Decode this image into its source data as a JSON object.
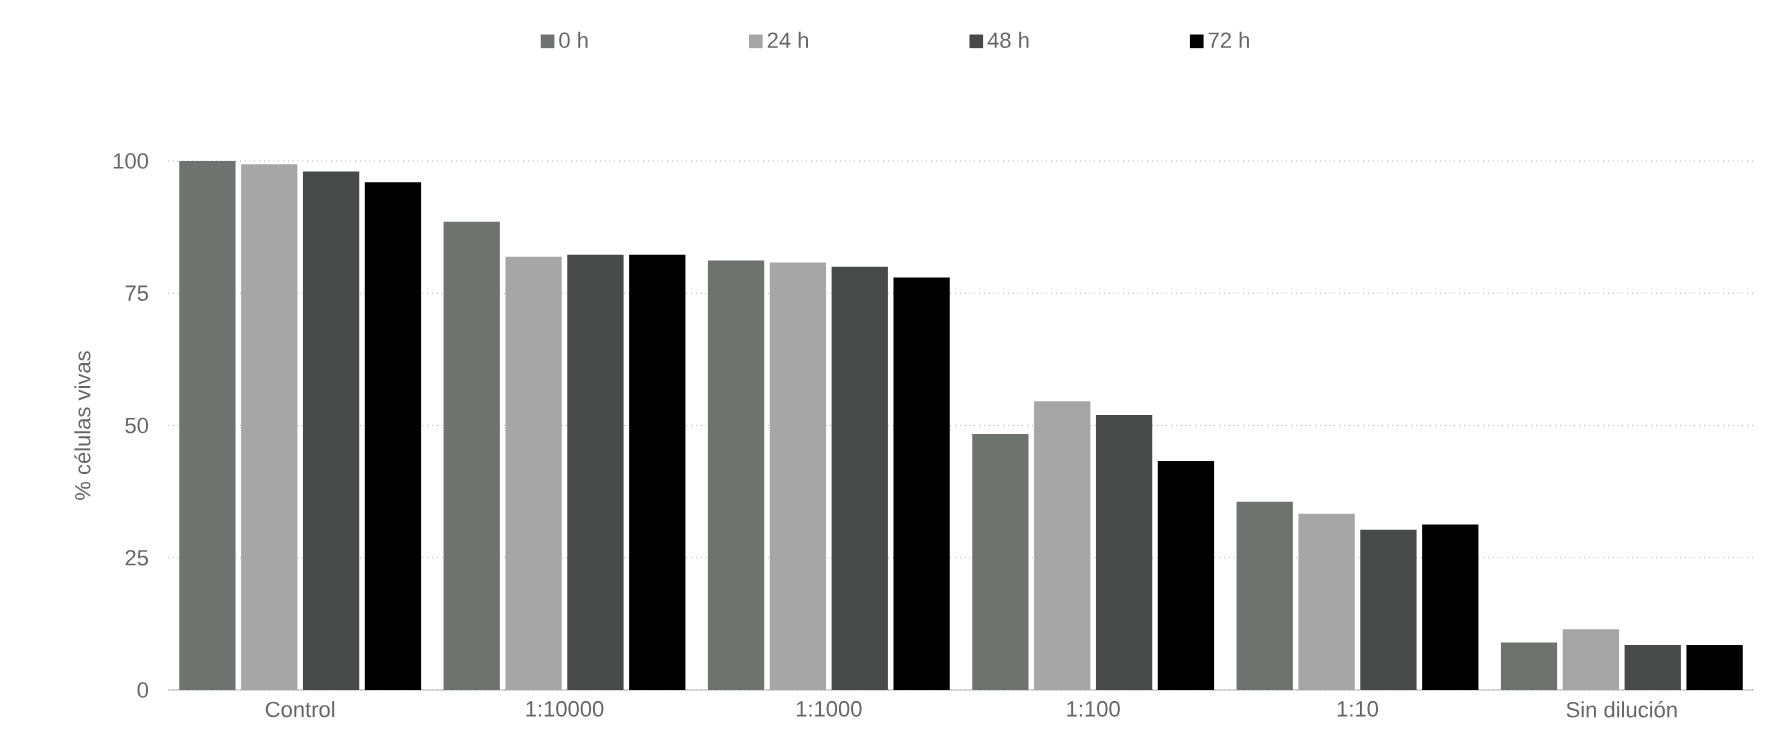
{
  "chart_data": {
    "type": "bar",
    "ylabel": "% células vivas",
    "categories": [
      "Control",
      "1:10000",
      "1:1000",
      "1:100",
      "1:10",
      "Sin dilución"
    ],
    "series": [
      {
        "name": "0 h",
        "color": "#6e7370",
        "values": [
          100,
          88.5,
          81.2,
          48.4,
          35.6,
          9
        ]
      },
      {
        "name": "24 h",
        "color": "#a6a6a6",
        "values": [
          99.4,
          81.9,
          80.8,
          54.6,
          33.3,
          11.5
        ]
      },
      {
        "name": "48 h",
        "color": "#474a49",
        "values": [
          98,
          82.3,
          80,
          52,
          30.3,
          8.5
        ]
      },
      {
        "name": "72 h",
        "color": "#000000",
        "values": [
          96,
          82.3,
          78,
          43.3,
          31.3,
          8.5
        ]
      }
    ],
    "ylim": [
      0,
      100
    ],
    "yticks": [
      0,
      25,
      50,
      75,
      100
    ],
    "grid": "y",
    "legend": "top"
  }
}
